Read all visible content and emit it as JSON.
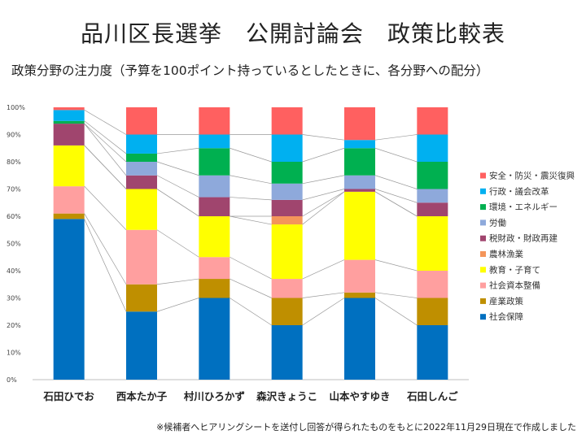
{
  "header": {
    "title": "品川区長選挙　公開討論会　政策比較表",
    "subtitle": "政策分野の注力度（予算を100ポイント持っているとしたときに、各分野への配分）"
  },
  "footer": {
    "note": "※候補者へヒアリングシートを送付し回答が得られたものをもとに2022年11月29日現在で作成しました"
  },
  "chart_data": {
    "type": "bar",
    "stacked": true,
    "categories": [
      "石田ひでお",
      "西本たか子",
      "村川ひろかず",
      "森沢きょうこ",
      "山本やすゆき",
      "石田しんご"
    ],
    "ylim": [
      0,
      100
    ],
    "yticks": [
      "0%",
      "10%",
      "20%",
      "30%",
      "40%",
      "50%",
      "60%",
      "70%",
      "80%",
      "90%",
      "100%"
    ],
    "grid": false,
    "legend_position": "right",
    "series_lines": true,
    "series": [
      {
        "name": "社会保障",
        "color": "#0070C0",
        "values": [
          59,
          25,
          30,
          20,
          30,
          20
        ]
      },
      {
        "name": "産業政策",
        "color": "#BF8F00",
        "values": [
          2,
          10,
          7,
          10,
          2,
          10
        ]
      },
      {
        "name": "社会資本整備",
        "color": "#FF9F9F",
        "values": [
          10,
          20,
          8,
          7,
          12,
          10
        ]
      },
      {
        "name": "教育・子育て",
        "color": "#FFFF00",
        "values": [
          15,
          15,
          15,
          20,
          25,
          20
        ]
      },
      {
        "name": "農林漁業",
        "color": "#F4955A",
        "values": [
          0,
          0,
          0,
          3,
          0,
          0
        ]
      },
      {
        "name": "税財政・財政再建",
        "color": "#A0456E",
        "values": [
          8,
          5,
          7,
          6,
          1,
          5
        ]
      },
      {
        "name": "労働",
        "color": "#8EA9DB",
        "values": [
          0,
          5,
          8,
          6,
          5,
          5
        ]
      },
      {
        "name": "環境・エネルギー",
        "color": "#00B050",
        "values": [
          1,
          3,
          10,
          8,
          10,
          10
        ]
      },
      {
        "name": "行政・議会改革",
        "color": "#00B0F0",
        "values": [
          4,
          7,
          5,
          10,
          3,
          10
        ]
      },
      {
        "name": "安全・防災・震災復興",
        "color": "#FF6060",
        "values": [
          1,
          10,
          10,
          10,
          12,
          10
        ]
      }
    ]
  }
}
